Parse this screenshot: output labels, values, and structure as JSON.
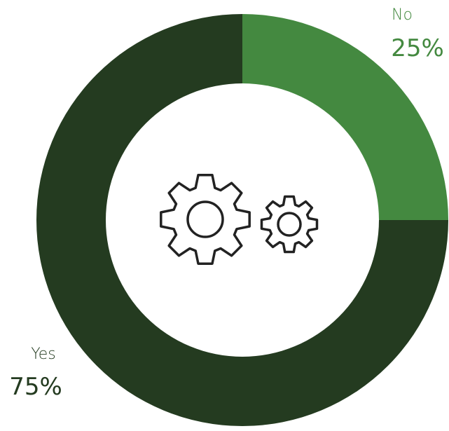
{
  "chart_data": {
    "type": "pie",
    "variant": "donut",
    "slices": [
      {
        "label": "No",
        "value": 25,
        "value_label": "25%",
        "color": "#448940"
      },
      {
        "label": "Yes",
        "value": 75,
        "value_label": "75%",
        "color": "#243b20"
      }
    ],
    "legend": "none",
    "center_icon": "gears-icon"
  },
  "colors": {
    "label_no": "#448940",
    "label_yes": "#243b20",
    "icon_stroke": "#222222"
  }
}
